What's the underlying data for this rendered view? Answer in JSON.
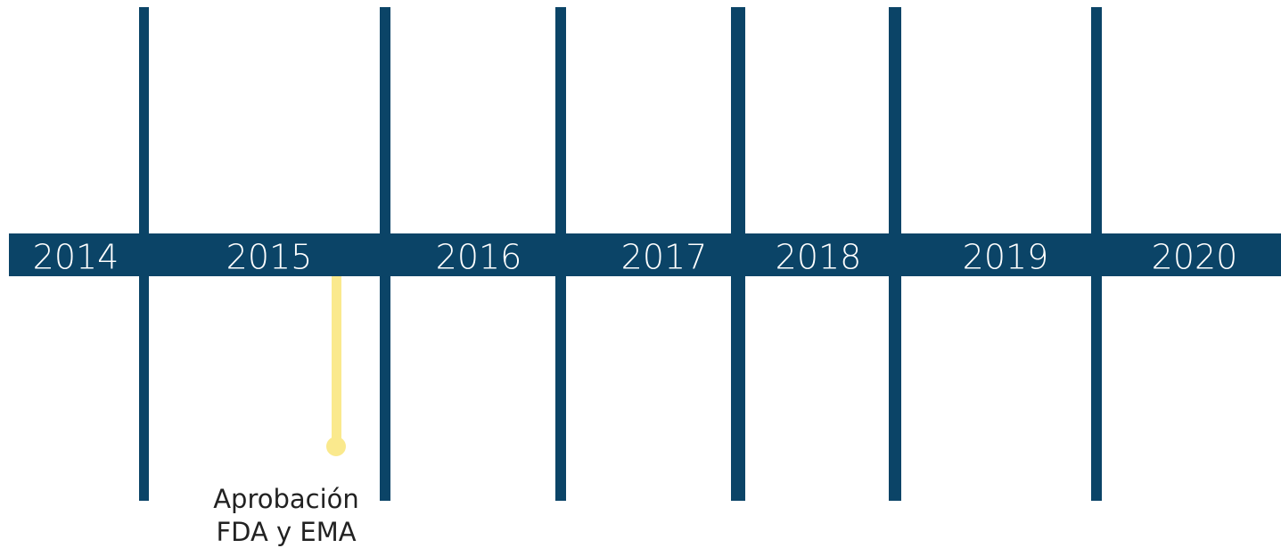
{
  "timeline": {
    "years": [
      "2014",
      "2015",
      "2016",
      "2017",
      "2018",
      "2019",
      "2020"
    ],
    "events": [
      {
        "label_lines": [
          "Aprobación",
          "FDA y EMA"
        ]
      }
    ]
  }
}
